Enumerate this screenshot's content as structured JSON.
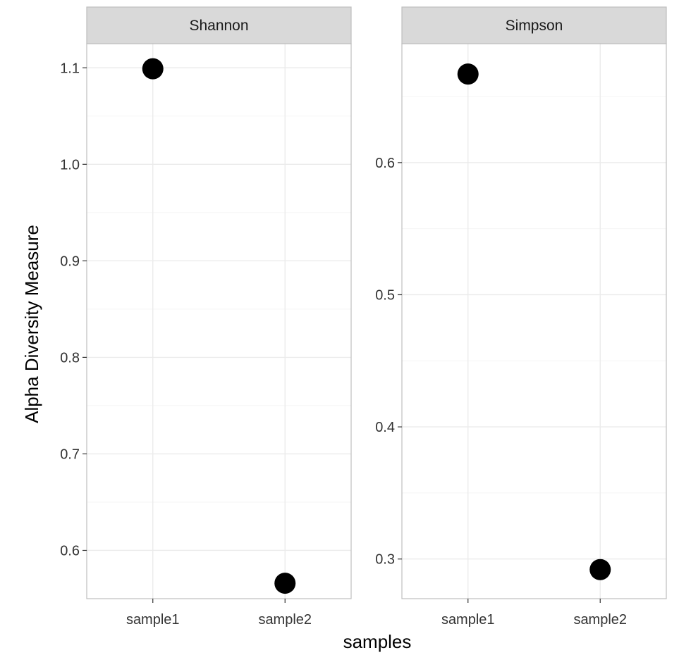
{
  "chart_data": {
    "type": "scatter",
    "xlabel": "samples",
    "ylabel": "Alpha Diversity Measure",
    "categories": [
      "sample1",
      "sample2"
    ],
    "grid": true,
    "colors": {
      "point": "#000000",
      "strip_background": "#d9d9d9",
      "panel_border": "#bdbdbd",
      "grid_major": "#ebebeb",
      "grid_minor": "#f5f5f5"
    },
    "panels": [
      {
        "name": "Shannon",
        "ylim": [
          0.55,
          1.125
        ],
        "yticks": [
          0.6,
          0.7,
          0.8,
          0.9,
          1.0,
          1.1
        ],
        "ytick_labels": [
          "0.6",
          "0.7",
          "0.8",
          "0.9",
          "1.0",
          "1.1"
        ],
        "values": [
          1.099,
          0.566
        ]
      },
      {
        "name": "Simpson",
        "ylim": [
          0.27,
          0.69
        ],
        "yticks": [
          0.3,
          0.4,
          0.5,
          0.6
        ],
        "ytick_labels": [
          "0.3",
          "0.4",
          "0.5",
          "0.6"
        ],
        "values": [
          0.667,
          0.292
        ]
      }
    ]
  }
}
